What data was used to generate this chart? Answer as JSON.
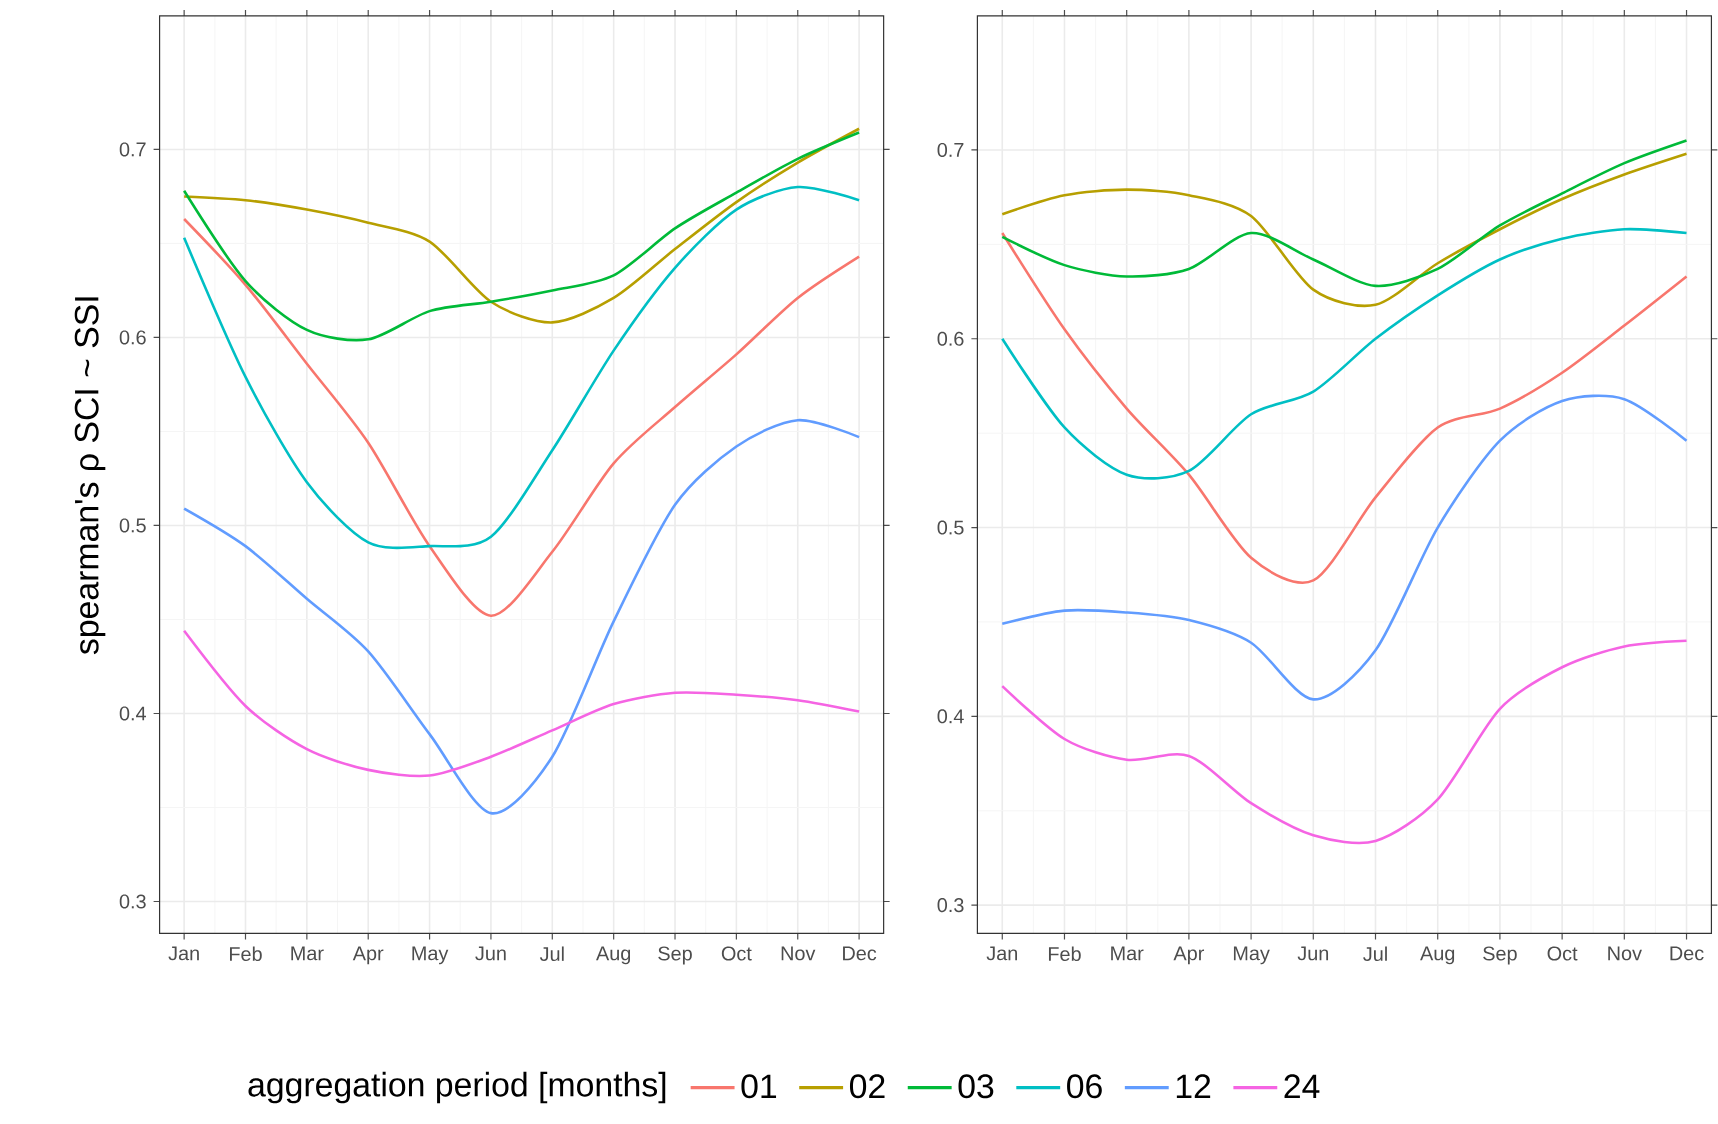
{
  "chart_data": [
    {
      "type": "line",
      "ylabel": "spearman's ρ SCI ~ SSI",
      "legend_title": "aggregation period [months]",
      "legend": "bottom",
      "grid": true,
      "categories": [
        "Jan",
        "Feb",
        "Mar",
        "Apr",
        "May",
        "Jun",
        "Jul",
        "Aug",
        "Sep",
        "Oct",
        "Nov",
        "Dec"
      ],
      "ylim": [
        0.283,
        0.771
      ],
      "yticks": [
        0.3,
        0.4,
        0.5,
        0.6,
        0.7
      ],
      "series": [
        {
          "name": "01",
          "color": "#f8766d",
          "values": [
            0.663,
            0.628,
            0.586,
            0.544,
            0.489,
            0.452,
            0.486,
            0.533,
            0.563,
            0.591,
            0.621,
            0.643
          ]
        },
        {
          "name": "02",
          "color": "#b79f00",
          "values": [
            0.675,
            0.673,
            0.668,
            0.661,
            0.651,
            0.619,
            0.608,
            0.621,
            0.647,
            0.672,
            0.693,
            0.711
          ]
        },
        {
          "name": "03",
          "color": "#00ba38",
          "values": [
            0.678,
            0.63,
            0.604,
            0.599,
            0.614,
            0.619,
            0.625,
            0.633,
            0.658,
            0.677,
            0.695,
            0.709
          ]
        },
        {
          "name": "06",
          "color": "#00bfc4",
          "values": [
            0.653,
            0.579,
            0.523,
            0.491,
            0.489,
            0.494,
            0.54,
            0.593,
            0.637,
            0.668,
            0.68,
            0.673
          ]
        },
        {
          "name": "12",
          "color": "#619cff",
          "values": [
            0.509,
            0.489,
            0.461,
            0.433,
            0.389,
            0.347,
            0.377,
            0.449,
            0.511,
            0.542,
            0.556,
            0.547
          ]
        },
        {
          "name": "24",
          "color": "#f564e3",
          "values": [
            0.444,
            0.404,
            0.381,
            0.37,
            0.367,
            0.377,
            0.391,
            0.405,
            0.411,
            0.41,
            0.407,
            0.401
          ]
        }
      ]
    },
    {
      "type": "line",
      "grid": true,
      "categories": [
        "Jan",
        "Feb",
        "Mar",
        "Apr",
        "May",
        "Jun",
        "Jul",
        "Aug",
        "Sep",
        "Oct",
        "Nov",
        "Dec"
      ],
      "ylim": [
        0.285,
        0.771
      ],
      "yticks": [
        0.3,
        0.4,
        0.5,
        0.6,
        0.7
      ],
      "series": [
        {
          "color": "#f8766d",
          "values": [
            0.656,
            0.605,
            0.563,
            0.528,
            0.484,
            0.472,
            0.516,
            0.553,
            0.563,
            0.582,
            0.607,
            0.633
          ]
        },
        {
          "color": "#b79f00",
          "values": [
            0.666,
            0.676,
            0.679,
            0.676,
            0.665,
            0.626,
            0.618,
            0.64,
            0.658,
            0.674,
            0.687,
            0.698
          ]
        },
        {
          "color": "#00ba38",
          "values": [
            0.654,
            0.639,
            0.633,
            0.637,
            0.656,
            0.642,
            0.628,
            0.637,
            0.66,
            0.677,
            0.693,
            0.705
          ]
        },
        {
          "color": "#00bfc4",
          "values": [
            0.6,
            0.553,
            0.528,
            0.53,
            0.56,
            0.572,
            0.6,
            0.623,
            0.642,
            0.653,
            0.658,
            0.656
          ]
        },
        {
          "color": "#619cff",
          "values": [
            0.449,
            0.456,
            0.455,
            0.451,
            0.439,
            0.409,
            0.435,
            0.5,
            0.546,
            0.567,
            0.568,
            0.546
          ]
        },
        {
          "color": "#f564e3",
          "values": [
            0.416,
            0.388,
            0.377,
            0.379,
            0.354,
            0.337,
            0.334,
            0.356,
            0.404,
            0.426,
            0.437,
            0.44
          ]
        }
      ]
    }
  ]
}
